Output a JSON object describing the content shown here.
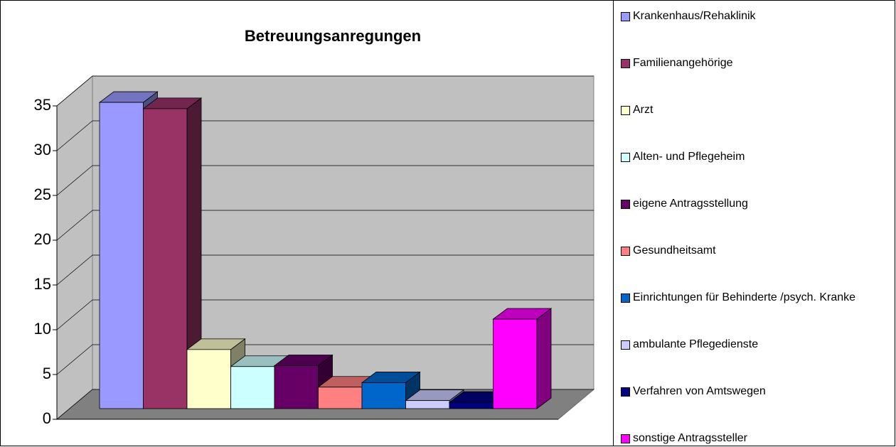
{
  "chart_data": {
    "type": "bar3d",
    "title": "Betreuungsanregungen",
    "categories": [
      "Krankenhaus/Rehaklinik",
      "Familienangehörige",
      "Arzt",
      "Alten- und Pflegeheim",
      "eigene Antragsstellung",
      "Gesundheitsamt",
      "Einrichtungen für Behinderte /psych. Kranke",
      "ambulante Pflegedienste",
      "Verfahren von Amtswegen",
      "sonstige Antragssteller"
    ],
    "values": [
      34.2,
      33.5,
      6.6,
      4.7,
      4.8,
      2.4,
      2.9,
      0.9,
      0.7,
      10.0
    ],
    "colors": [
      "#9999ff",
      "#993366",
      "#ffffcc",
      "#ccffff",
      "#660066",
      "#ff8080",
      "#0066cc",
      "#ccccff",
      "#000080",
      "#ff00ff"
    ],
    "ylim": [
      0,
      35
    ],
    "yticks": [
      0,
      5,
      10,
      15,
      20,
      25,
      30,
      35
    ],
    "grid": true,
    "legend": "right"
  }
}
